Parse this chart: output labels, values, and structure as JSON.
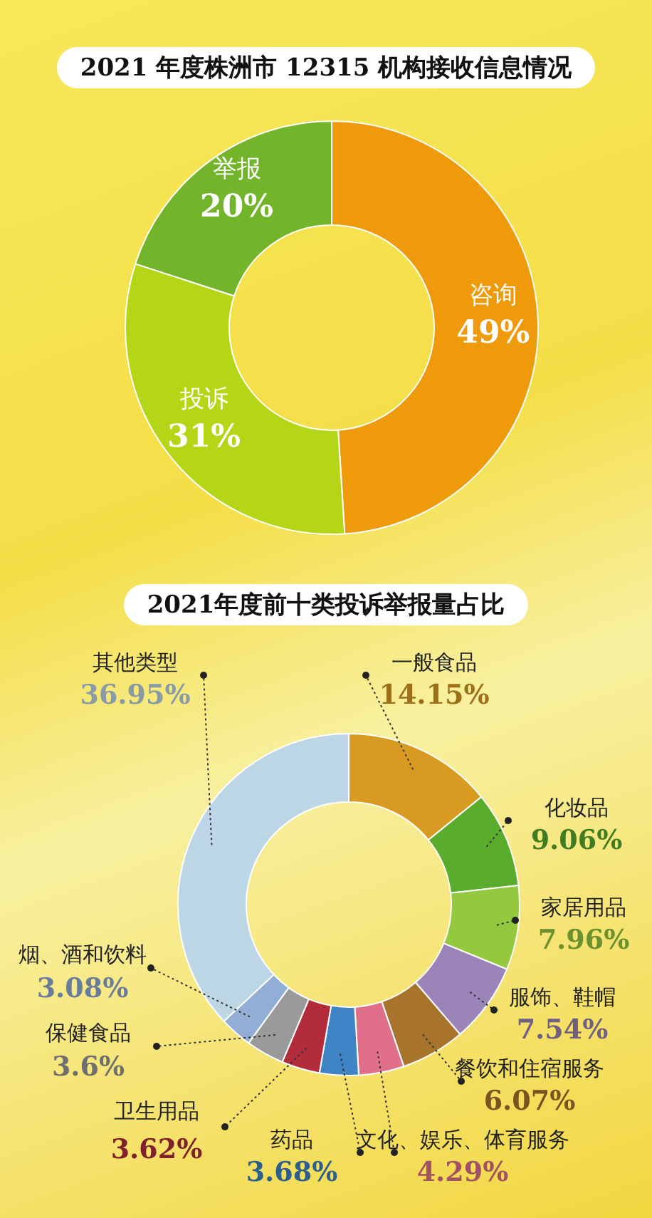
{
  "chart_data": [
    {
      "type": "donut",
      "title": "2021 年度株洲市 12315 机构接收信息情况",
      "categories": [
        "咨询",
        "投诉",
        "举报"
      ],
      "values": [
        49,
        31,
        20
      ],
      "value_labels": [
        "49%",
        "31%",
        "20%"
      ],
      "colors": [
        "#ef9a0a",
        "#b4d616",
        "#72b42a"
      ]
    },
    {
      "type": "donut",
      "title": "2021年度前十类投诉举报量占比",
      "categories": [
        "一般食品",
        "化妆品",
        "家居用品",
        "服饰、鞋帽",
        "餐饮和住宿服务",
        "文化、娱乐、体育服务",
        "药品",
        "卫生用品",
        "保健食品",
        "烟、酒和饮料",
        "其他类型"
      ],
      "values": [
        14.15,
        9.06,
        7.96,
        7.54,
        6.07,
        4.29,
        3.68,
        3.62,
        3.6,
        3.08,
        36.95
      ],
      "value_labels": [
        "14.15%",
        "9.06%",
        "7.96%",
        "7.54%",
        "6.07%",
        "4.29%",
        "3.68%",
        "3.62%",
        "3.6%",
        "3.08%",
        "36.95%"
      ],
      "colors": [
        "#d99a22",
        "#5aac2c",
        "#94c83e",
        "#9a84b8",
        "#a8742c",
        "#e0708a",
        "#3f84c4",
        "#b22c3c",
        "#9a9a9a",
        "#92aed6",
        "#bcd6e6"
      ]
    }
  ]
}
